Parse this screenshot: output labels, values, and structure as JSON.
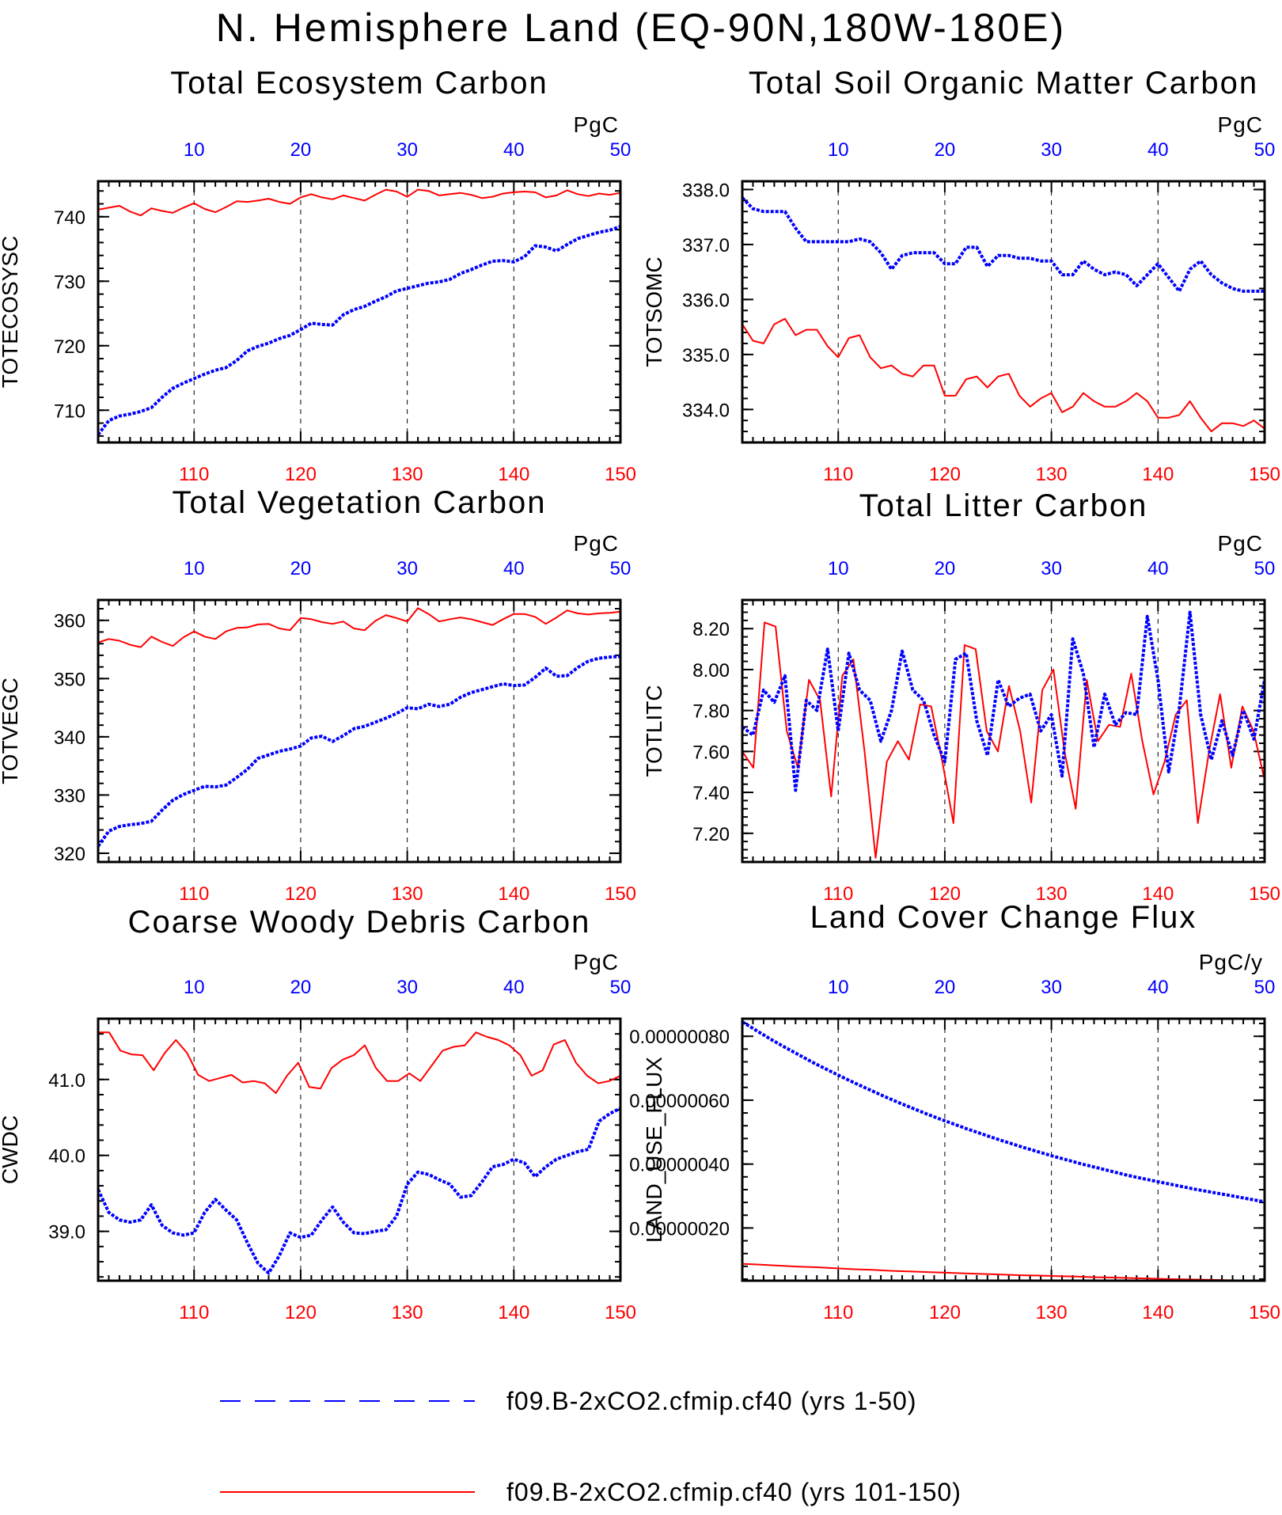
{
  "page": {
    "title": "N. Hemisphere Land (EQ-90N,180W-180E)"
  },
  "colors": {
    "series_a": "#ff0000",
    "series_b": "#0000ff",
    "axis": "#000000",
    "grid": "#000000"
  },
  "legend": {
    "items": [
      {
        "label": "f09.B-2xCO2.cfmip.cf40 (yrs 1-50)",
        "color": "#0000ff",
        "style": "dashed"
      },
      {
        "label": "f09.B-2xCO2.cfmip.cf40 (yrs 101-150)",
        "color": "#ff0000",
        "style": "solid"
      }
    ]
  },
  "chart_data": [
    {
      "type": "line",
      "title": "Total Ecosystem Carbon",
      "ylabel": "TOTECOSYSC",
      "units": "PgC",
      "x_bottom": {
        "ticks": [
          110,
          120,
          130,
          140,
          150
        ],
        "range": [
          101,
          150
        ]
      },
      "x_top": {
        "ticks": [
          10,
          20,
          30,
          40,
          50
        ],
        "range": [
          1,
          50
        ]
      },
      "y_ticks": [
        "710",
        "720",
        "730",
        "740"
      ],
      "ylim": [
        705,
        745.5
      ],
      "grid": "vertical dashed",
      "series": [
        {
          "name": "f09.B-2xCO2.cfmip.cf40 (yrs 101-150)",
          "color": "#ff0000",
          "style": "solid",
          "values": [
            741.1,
            741.4,
            741.7,
            740.8,
            740.2,
            741.3,
            740.9,
            740.6,
            741.4,
            742.1,
            741.2,
            740.7,
            741.5,
            742.4,
            742.3,
            742.5,
            742.8,
            742.3,
            742.0,
            743.0,
            743.5,
            743.0,
            742.7,
            743.3,
            742.9,
            742.5,
            743.4,
            744.2,
            743.9,
            743.1,
            744.2,
            744.0,
            743.3,
            743.5,
            743.7,
            743.4,
            742.9,
            743.1,
            743.6,
            743.8,
            743.9,
            743.8,
            743.0,
            743.3,
            744.1,
            743.5,
            743.2,
            743.6,
            743.4,
            743.7
          ]
        },
        {
          "name": "f09.B-2xCO2.cfmip.cf40 (yrs 1-50)",
          "color": "#0000ff",
          "style": "dashed",
          "values": [
            706.2,
            708.4,
            709.1,
            709.4,
            709.8,
            710.4,
            712.0,
            713.4,
            714.2,
            714.9,
            715.6,
            716.2,
            716.6,
            717.7,
            719.2,
            719.9,
            720.4,
            721.1,
            721.6,
            722.5,
            723.5,
            723.3,
            723.2,
            724.8,
            725.6,
            726.1,
            726.9,
            727.6,
            728.5,
            728.9,
            729.3,
            729.7,
            729.9,
            730.3,
            731.2,
            731.8,
            732.5,
            733.1,
            733.2,
            733.0,
            733.8,
            735.5,
            735.3,
            734.7,
            735.7,
            736.6,
            737.1,
            737.6,
            737.9,
            738.5
          ]
        }
      ]
    },
    {
      "type": "line",
      "title": "Total Soil Organic Matter Carbon",
      "ylabel": "TOTSOMC",
      "units": "PgC",
      "x_bottom": {
        "ticks": [
          110,
          120,
          130,
          140,
          150
        ],
        "range": [
          101,
          150
        ]
      },
      "x_top": {
        "ticks": [
          10,
          20,
          30,
          40,
          50
        ],
        "range": [
          1,
          50
        ]
      },
      "y_ticks": [
        "334.0",
        "335.0",
        "336.0",
        "337.0",
        "338.0"
      ],
      "ylim": [
        333.4,
        338.15
      ],
      "grid": "vertical dashed",
      "series": [
        {
          "name": "f09.B-2xCO2.cfmip.cf40 (yrs 101-150)",
          "color": "#ff0000",
          "style": "solid",
          "values": [
            335.55,
            335.25,
            335.2,
            335.55,
            335.65,
            335.35,
            335.45,
            335.45,
            335.15,
            334.95,
            335.3,
            335.35,
            334.95,
            334.75,
            334.8,
            334.65,
            334.6,
            334.8,
            334.8,
            334.25,
            334.25,
            334.55,
            334.6,
            334.4,
            334.6,
            334.65,
            334.25,
            334.05,
            334.2,
            334.3,
            333.95,
            334.05,
            334.3,
            334.15,
            334.05,
            334.05,
            334.15,
            334.3,
            334.15,
            333.85,
            333.85,
            333.9,
            334.15,
            333.85,
            333.6,
            333.75,
            333.75,
            333.7,
            333.8,
            333.65
          ]
        },
        {
          "name": "f09.B-2xCO2.cfmip.cf40 (yrs 1-50)",
          "color": "#0000ff",
          "style": "dashed",
          "values": [
            337.85,
            337.65,
            337.6,
            337.6,
            337.6,
            337.3,
            337.05,
            337.05,
            337.05,
            337.05,
            337.05,
            337.1,
            337.05,
            336.85,
            336.55,
            336.8,
            336.85,
            336.85,
            336.85,
            336.65,
            336.65,
            336.95,
            336.95,
            336.6,
            336.8,
            336.8,
            336.75,
            336.75,
            336.7,
            336.7,
            336.45,
            336.45,
            336.7,
            336.55,
            336.45,
            336.5,
            336.45,
            336.25,
            336.45,
            336.65,
            336.4,
            336.15,
            336.55,
            336.7,
            336.45,
            336.3,
            336.2,
            336.15,
            336.15,
            336.15
          ]
        }
      ]
    },
    {
      "type": "line",
      "title": "Total Vegetation Carbon",
      "ylabel": "TOTVEGC",
      "units": "PgC",
      "x_bottom": {
        "ticks": [
          110,
          120,
          130,
          140,
          150
        ],
        "range": [
          101,
          150
        ]
      },
      "x_top": {
        "ticks": [
          10,
          20,
          30,
          40,
          50
        ],
        "range": [
          1,
          50
        ]
      },
      "y_ticks": [
        "320",
        "330",
        "340",
        "350",
        "360"
      ],
      "ylim": [
        318.5,
        363.5
      ],
      "grid": "vertical dashed",
      "series": [
        {
          "name": "f09.B-2xCO2.cfmip.cf40 (yrs 101-150)",
          "color": "#ff0000",
          "style": "solid",
          "values": [
            356.2,
            356.8,
            356.5,
            355.8,
            355.4,
            357.2,
            356.3,
            355.6,
            357.1,
            358.1,
            357.2,
            356.8,
            358.1,
            358.7,
            358.8,
            359.3,
            359.4,
            358.6,
            358.3,
            360.4,
            360.2,
            359.7,
            359.4,
            359.8,
            358.6,
            358.3,
            359.9,
            360.9,
            360.4,
            359.8,
            362.1,
            361.1,
            359.8,
            360.2,
            360.5,
            360.2,
            359.7,
            359.2,
            360.2,
            361.1,
            361.1,
            360.6,
            359.4,
            360.5,
            361.7,
            361.2,
            361.0,
            361.2,
            361.3,
            361.5
          ]
        },
        {
          "name": "f09.B-2xCO2.cfmip.cf40 (yrs 1-50)",
          "color": "#0000ff",
          "style": "dashed",
          "values": [
            321.2,
            323.8,
            324.6,
            324.9,
            325.1,
            325.5,
            327.4,
            329.1,
            330.1,
            330.8,
            331.5,
            331.4,
            331.7,
            333.0,
            334.4,
            336.3,
            336.9,
            337.5,
            337.9,
            338.4,
            339.8,
            340.1,
            339.2,
            340.2,
            341.4,
            341.8,
            342.5,
            343.2,
            344.0,
            345.0,
            344.8,
            345.6,
            345.2,
            345.6,
            346.8,
            347.6,
            348.1,
            348.6,
            349.1,
            348.8,
            348.9,
            350.2,
            351.8,
            350.4,
            350.5,
            351.9,
            353.0,
            353.5,
            353.7,
            353.8
          ]
        }
      ]
    },
    {
      "type": "line",
      "title": "Total Litter Carbon",
      "ylabel": "TOTLITC",
      "units": "PgC",
      "x_bottom": {
        "ticks": [
          110,
          120,
          130,
          140,
          150
        ],
        "range": [
          101,
          150
        ]
      },
      "x_top": {
        "ticks": [
          10,
          20,
          30,
          40,
          50
        ],
        "range": [
          1,
          50
        ]
      },
      "y_ticks": [
        "7.20",
        "7.40",
        "7.60",
        "7.80",
        "8.00",
        "8.20"
      ],
      "ylim": [
        7.06,
        8.34
      ],
      "grid": "vertical dashed",
      "series": [
        {
          "name": "f09.B-2xCO2.cfmip.cf40 (yrs 101-150)",
          "color": "#ff0000",
          "style": "solid",
          "values": [
            7.6,
            7.52,
            8.23,
            8.21,
            7.7,
            7.52,
            7.95,
            7.85,
            7.38,
            7.97,
            8.05,
            7.6,
            7.08,
            7.55,
            7.65,
            7.56,
            7.83,
            7.82,
            7.55,
            7.25,
            8.12,
            8.1,
            7.7,
            7.6,
            7.92,
            7.7,
            7.35,
            7.9,
            8.0,
            7.6,
            7.32,
            7.95,
            7.65,
            7.73,
            7.72,
            7.98,
            7.65,
            7.39,
            7.55,
            7.78,
            7.85,
            7.25,
            7.6,
            7.88,
            7.52,
            7.82,
            7.7,
            7.46
          ]
        },
        {
          "name": "f09.B-2xCO2.cfmip.cf40 (yrs 1-50)",
          "color": "#0000ff",
          "style": "dashed",
          "values": [
            7.72,
            7.68,
            7.9,
            7.84,
            7.97,
            7.41,
            7.85,
            7.8,
            8.1,
            7.7,
            8.08,
            7.9,
            7.85,
            7.65,
            7.8,
            8.09,
            7.9,
            7.85,
            7.68,
            7.55,
            8.05,
            8.08,
            7.75,
            7.58,
            7.95,
            7.82,
            7.86,
            7.88,
            7.7,
            7.78,
            7.48,
            8.15,
            7.98,
            7.62,
            7.88,
            7.73,
            7.79,
            7.78,
            8.26,
            7.95,
            7.5,
            7.81,
            8.28,
            7.78,
            7.56,
            7.75,
            7.58,
            7.8,
            7.66,
            7.95
          ]
        }
      ]
    },
    {
      "type": "line",
      "title": "Coarse Woody Debris Carbon",
      "ylabel": "CWDC",
      "units": "PgC",
      "x_bottom": {
        "ticks": [
          110,
          120,
          130,
          140,
          150
        ],
        "range": [
          101,
          150
        ]
      },
      "x_top": {
        "ticks": [
          10,
          20,
          30,
          40,
          50
        ],
        "range": [
          1,
          50
        ]
      },
      "y_ticks": [
        "39.0",
        "40.0",
        "41.0"
      ],
      "ylim": [
        38.35,
        41.8
      ],
      "grid": "vertical dashed",
      "series": [
        {
          "name": "f09.B-2xCO2.cfmip.cf40 (yrs 101-150)",
          "color": "#ff0000",
          "style": "solid",
          "values": [
            41.62,
            41.62,
            41.38,
            41.33,
            41.32,
            41.12,
            41.35,
            41.52,
            41.35,
            41.06,
            40.98,
            41.02,
            41.06,
            40.96,
            40.98,
            40.95,
            40.82,
            41.05,
            41.22,
            40.9,
            40.88,
            41.15,
            41.26,
            41.32,
            41.45,
            41.15,
            40.98,
            40.98,
            41.08,
            40.98,
            41.18,
            41.38,
            41.43,
            41.45,
            41.62,
            41.56,
            41.52,
            41.45,
            41.32,
            41.05,
            41.12,
            41.46,
            41.52,
            41.22,
            41.05,
            40.95,
            40.98,
            41.05
          ]
        },
        {
          "name": "f09.B-2xCO2.cfmip.cf40 (yrs 1-50)",
          "color": "#0000ff",
          "style": "dashed",
          "values": [
            39.55,
            39.25,
            39.15,
            39.12,
            39.15,
            39.35,
            39.08,
            38.98,
            38.95,
            38.98,
            39.25,
            39.42,
            39.28,
            39.15,
            38.85,
            38.58,
            38.45,
            38.68,
            38.98,
            38.92,
            38.95,
            39.15,
            39.32,
            39.12,
            38.98,
            38.97,
            39.0,
            39.02,
            39.2,
            39.62,
            39.78,
            39.75,
            39.68,
            39.62,
            39.45,
            39.47,
            39.65,
            39.85,
            39.88,
            39.95,
            39.9,
            39.72,
            39.85,
            39.95,
            40.0,
            40.05,
            40.08,
            40.45,
            40.55,
            40.62
          ]
        }
      ]
    },
    {
      "type": "line",
      "title": "Land Cover Change Flux",
      "ylabel": "LAND_USE_FLUX",
      "units": "PgC/y",
      "x_bottom": {
        "ticks": [
          110,
          120,
          130,
          140,
          150
        ],
        "range": [
          101,
          150
        ]
      },
      "x_top": {
        "ticks": [
          10,
          20,
          30,
          40,
          50
        ],
        "range": [
          1,
          50
        ]
      },
      "y_ticks": [
        "0.00000020",
        "0.00000040",
        "0.00000060",
        "0.00000080"
      ],
      "ylim": [
        3.5e-08,
        8.55e-07
      ],
      "grid": "vertical dashed",
      "series": [
        {
          "name": "f09.B-2xCO2.cfmip.cf40 (yrs 101-150)",
          "color": "#ff0000",
          "style": "solid",
          "values": [
            8.8e-08,
            8.5e-08,
            8.2e-08,
            7.9e-08,
            7.7e-08,
            7.4e-08,
            7.1e-08,
            6.9e-08,
            6.6e-08,
            6.4e-08,
            6.2e-08,
            6e-08,
            5.8e-08,
            5.6e-08,
            5.4e-08,
            5.2e-08,
            5.1e-08,
            4.9e-08,
            4.8e-08,
            4.6e-08,
            4.5e-08,
            4.3e-08,
            4.2e-08,
            4e-08,
            3.9e-08,
            3.8e-08,
            3.7e-08,
            3.6e-08
          ]
        },
        {
          "name": "f09.B-2xCO2.cfmip.cf40 (yrs 1-50)",
          "color": "#0000ff",
          "style": "dashed",
          "values": [
            8.45e-07,
            8.18e-07,
            7.91e-07,
            7.66e-07,
            7.42e-07,
            7.18e-07,
            6.96e-07,
            6.74e-07,
            6.53e-07,
            6.33e-07,
            6.13e-07,
            5.94e-07,
            5.76e-07,
            5.58e-07,
            5.41e-07,
            5.25e-07,
            5.09e-07,
            4.94e-07,
            4.79e-07,
            4.65e-07,
            4.51e-07,
            4.38e-07,
            4.25e-07,
            4.13e-07,
            4.01e-07,
            3.9e-07,
            3.79e-07,
            3.68e-07,
            3.58e-07,
            3.49e-07,
            3.4e-07,
            3.31e-07,
            3.22e-07,
            3.14e-07,
            3.06e-07,
            2.98e-07,
            2.9e-07,
            2.82e-07
          ]
        }
      ]
    }
  ]
}
